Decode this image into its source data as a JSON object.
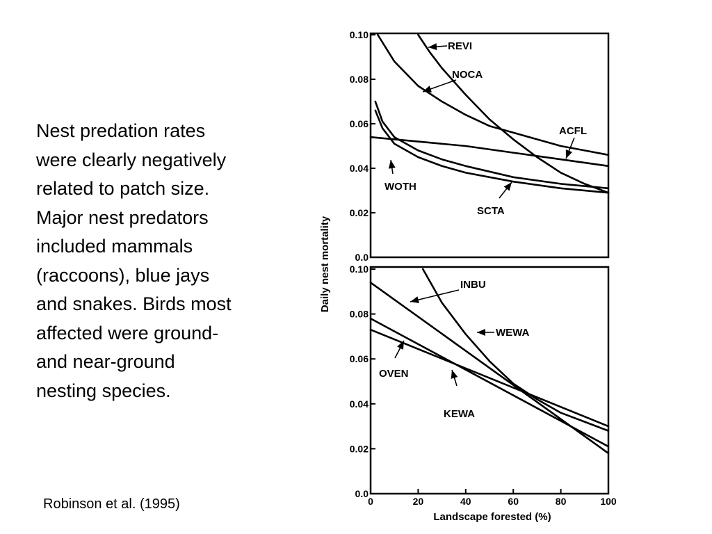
{
  "slide": {
    "lines": [
      "Nest predation rates",
      "were clearly negatively",
      "related to patch size.",
      "Major nest predators",
      "included mammals",
      "(raccoons), blue jays",
      "and snakes. Birds most",
      "affected were ground-",
      "and near-ground",
      "nesting species."
    ],
    "citation": "Robinson et al. (1995)"
  },
  "chart_data": [
    {
      "type": "line",
      "title": "",
      "xlabel": "Landscape forested (%)",
      "ylabel": "Daily nest mortality",
      "xlim": [
        0,
        100
      ],
      "ylim": [
        0,
        0.1
      ],
      "yticks": [
        "0.0",
        "0.02",
        "0.04",
        "0.06",
        "0.08",
        "0.10"
      ],
      "grid": false,
      "series": [
        {
          "name": "REVI",
          "x": [
            20,
            25,
            30,
            40,
            50,
            60,
            70,
            80,
            90,
            100
          ],
          "y": [
            0.1,
            0.092,
            0.085,
            0.073,
            0.062,
            0.053,
            0.045,
            0.038,
            0.033,
            0.029
          ]
        },
        {
          "name": "NOCA",
          "x": [
            3,
            10,
            20,
            30,
            40,
            50,
            60,
            70,
            80,
            90,
            100
          ],
          "y": [
            0.1,
            0.088,
            0.077,
            0.07,
            0.064,
            0.059,
            0.056,
            0.053,
            0.05,
            0.048,
            0.046
          ]
        },
        {
          "name": "ACFL",
          "x": [
            0,
            20,
            40,
            60,
            80,
            100
          ],
          "y": [
            0.054,
            0.052,
            0.05,
            0.047,
            0.044,
            0.041
          ]
        },
        {
          "name": "WOTH",
          "x": [
            2,
            5,
            10,
            20,
            30,
            40,
            60,
            80,
            100
          ],
          "y": [
            0.066,
            0.058,
            0.051,
            0.045,
            0.041,
            0.038,
            0.034,
            0.031,
            0.029
          ]
        },
        {
          "name": "SCTA",
          "x": [
            2,
            5,
            10,
            20,
            30,
            40,
            60,
            80,
            100
          ],
          "y": [
            0.07,
            0.061,
            0.054,
            0.048,
            0.044,
            0.041,
            0.036,
            0.033,
            0.031
          ]
        }
      ]
    },
    {
      "type": "line",
      "title": "",
      "xlabel": "Landscape forested (%)",
      "ylabel": "Daily nest mortality",
      "xlim": [
        0,
        100
      ],
      "ylim": [
        0,
        0.1
      ],
      "xticks": [
        "0",
        "20",
        "40",
        "60",
        "80",
        "100"
      ],
      "yticks": [
        "0.0",
        "0.02",
        "0.04",
        "0.06",
        "0.08",
        "0.10"
      ],
      "grid": false,
      "series": [
        {
          "name": "INBU",
          "x": [
            0,
            100
          ],
          "y": [
            0.094,
            0.018
          ]
        },
        {
          "name": "WEWA",
          "x": [
            22,
            30,
            40,
            50,
            60,
            70,
            80,
            90,
            100
          ],
          "y": [
            0.1,
            0.085,
            0.071,
            0.059,
            0.049,
            0.042,
            0.036,
            0.032,
            0.028
          ]
        },
        {
          "name": "OVEN",
          "x": [
            0,
            100
          ],
          "y": [
            0.078,
            0.021
          ]
        },
        {
          "name": "KEWA",
          "x": [
            0,
            100
          ],
          "y": [
            0.073,
            0.03
          ]
        }
      ]
    }
  ]
}
